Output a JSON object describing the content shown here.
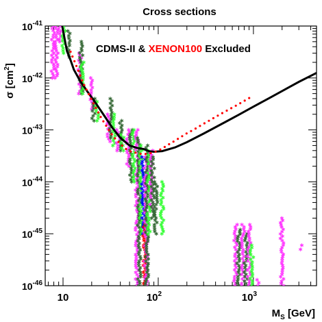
{
  "chart_data": {
    "type": "scatter",
    "title": "Cross sections",
    "xlabel": "M",
    "xlabel_sub": "S",
    "xlabel_unit": " [GeV]",
    "ylabel_main": "σ [cm",
    "ylabel_sup": "2",
    "ylabel_end": "]",
    "x_scale": "log",
    "y_scale": "log",
    "xlim": [
      6.5,
      4600
    ],
    "ylim": [
      1e-46,
      1e-41
    ],
    "x_ticks": [
      {
        "value": 10,
        "base": "10",
        "exp": ""
      },
      {
        "value": 100,
        "base": "10",
        "exp": "2"
      },
      {
        "value": 1000,
        "base": "10",
        "exp": "3"
      }
    ],
    "y_ticks": [
      {
        "value": 1e-41,
        "base": "10",
        "exp": "-41"
      },
      {
        "value": 1e-42,
        "base": "10",
        "exp": "-42"
      },
      {
        "value": 1e-43,
        "base": "10",
        "exp": "-43"
      },
      {
        "value": 1e-44,
        "base": "10",
        "exp": "-44"
      },
      {
        "value": 1e-45,
        "base": "10",
        "exp": "-45"
      },
      {
        "value": 1e-46,
        "base": "10",
        "exp": "-46"
      }
    ],
    "annotation": {
      "part1": "CDMS-II & ",
      "part2": "XENON100",
      "part3": " Excluded",
      "color1": "#000000",
      "color2": "#ff0000"
    },
    "curves": [
      {
        "style": "solid",
        "color": "#000000",
        "points": [
          [
            9.8,
            1e-41
          ],
          [
            11,
            3.3e-42
          ],
          [
            12,
            2.2e-42
          ],
          [
            13,
            1.45e-42
          ],
          [
            15,
            9e-43
          ],
          [
            18,
            5.5e-43
          ],
          [
            22,
            3.3e-43
          ],
          [
            27,
            1.9e-43
          ],
          [
            33,
            1.1e-43
          ],
          [
            40,
            7e-44
          ],
          [
            50,
            5e-44
          ],
          [
            60,
            4.5e-44
          ],
          [
            70,
            4.3e-44
          ],
          [
            80,
            3.9e-44
          ],
          [
            90,
            3.8e-44
          ],
          [
            110,
            3.9e-44
          ],
          [
            150,
            4.6e-44
          ],
          [
            200,
            5.8e-44
          ],
          [
            300,
            8.5e-44
          ],
          [
            500,
            1.4e-43
          ],
          [
            700,
            1.95e-43
          ],
          [
            1000,
            2.8e-43
          ],
          [
            1500,
            4.2e-43
          ],
          [
            2000,
            5.6e-43
          ],
          [
            3000,
            8.4e-43
          ],
          [
            4600,
            1.25e-42
          ]
        ]
      },
      {
        "style": "dotted",
        "color": "#ff0000",
        "points": [
          [
            12,
            3.2e-42
          ],
          [
            14,
            1.6e-42
          ],
          [
            16,
            8.6e-43
          ],
          [
            18,
            5.5e-43
          ],
          [
            20,
            3.8e-43
          ],
          [
            22,
            2.7e-43
          ],
          [
            25,
            1.75e-43
          ],
          [
            28,
            1.25e-43
          ],
          [
            32,
            8.5e-44
          ],
          [
            36,
            6.5e-44
          ],
          [
            40,
            5.4e-44
          ],
          [
            45,
            4.4e-44
          ],
          [
            50,
            3.9e-44
          ],
          [
            56,
            3.7e-44
          ],
          [
            63,
            3.5e-44
          ],
          [
            70,
            3.4e-44
          ],
          [
            80,
            3.5e-44
          ],
          [
            90,
            3.7e-44
          ],
          [
            100,
            4e-44
          ],
          [
            115,
            4.6e-44
          ],
          [
            130,
            5.3e-44
          ],
          [
            150,
            6.2e-44
          ],
          [
            175,
            7.4e-44
          ],
          [
            200,
            8.6e-44
          ],
          [
            240,
            1.03e-43
          ],
          [
            280,
            1.22e-43
          ],
          [
            330,
            1.45e-43
          ],
          [
            400,
            1.78e-43
          ],
          [
            480,
            2.15e-43
          ],
          [
            570,
            2.55e-43
          ],
          [
            680,
            3.05e-43
          ],
          [
            800,
            3.6e-43
          ],
          [
            900,
            4.1e-43
          ],
          [
            1000,
            4.5e-43
          ]
        ]
      }
    ],
    "scatter_bands": [
      {
        "color": "#ff33ff",
        "x": 7.8,
        "y_range": [
          1e-42,
          1e-41
        ],
        "n": 10
      },
      {
        "color": "#ff33ff",
        "x": 8.5,
        "y_range": [
          1e-42,
          1e-41
        ],
        "n": 10
      },
      {
        "color": "#ff33ff",
        "x": 9.3,
        "y_range": [
          5e-42,
          1e-41
        ],
        "n": 4
      },
      {
        "color": "#33ff33",
        "x": 10.2,
        "y_range": [
          3e-42,
          1e-41
        ],
        "n": 6
      },
      {
        "color": "#336633",
        "x": 11.5,
        "y_range": [
          2.5e-42,
          8e-42
        ],
        "n": 6
      },
      {
        "color": "#ff33ff",
        "x": 15,
        "y_range": [
          5e-43,
          3e-42
        ],
        "n": 10
      },
      {
        "color": "#336633",
        "x": 15.5,
        "y_range": [
          5e-43,
          5e-42
        ],
        "n": 14
      },
      {
        "color": "#33ff33",
        "x": 16,
        "y_range": [
          5e-43,
          2e-42
        ],
        "n": 6
      },
      {
        "color": "#ff33ff",
        "x": 20,
        "y_range": [
          2.5e-43,
          1e-42
        ],
        "n": 10
      },
      {
        "color": "#336633",
        "x": 21,
        "y_range": [
          1.5e-43,
          4e-43
        ],
        "n": 8
      },
      {
        "color": "#33ff33",
        "x": 23,
        "y_range": [
          1.5e-43,
          3.5e-43
        ],
        "n": 6
      },
      {
        "color": "#ff33ff",
        "x": 30,
        "y_range": [
          6e-44,
          2e-43
        ],
        "n": 8
      },
      {
        "color": "#336633",
        "x": 32,
        "y_range": [
          7e-44,
          4e-43
        ],
        "n": 10
      },
      {
        "color": "#33ff33",
        "x": 34,
        "y_range": [
          5e-44,
          2e-43
        ],
        "n": 6
      },
      {
        "color": "#ff33ff",
        "x": 38,
        "y_range": [
          4e-44,
          1e-43
        ],
        "n": 6
      },
      {
        "color": "#336633",
        "x": 40,
        "y_range": [
          4e-44,
          1.5e-43
        ],
        "n": 8
      },
      {
        "color": "#33ff33",
        "x": 42,
        "y_range": [
          4e-44,
          8e-44
        ],
        "n": 5
      },
      {
        "color": "#ff33ff",
        "x": 48,
        "y_range": [
          2e-44,
          1e-43
        ],
        "n": 8
      },
      {
        "color": "#336633",
        "x": 52,
        "y_range": [
          1e-44,
          1e-43
        ],
        "n": 12
      },
      {
        "color": "#33ff33",
        "x": 55,
        "y_range": [
          1e-44,
          1e-43
        ],
        "n": 10
      },
      {
        "color": "#ff33ff",
        "x": 60,
        "y_range": [
          1e-46,
          1e-43
        ],
        "n": 18
      },
      {
        "color": "#336633",
        "x": 63,
        "y_range": [
          1e-46,
          7e-44
        ],
        "n": 18
      },
      {
        "color": "#33ff33",
        "x": 66,
        "y_range": [
          1e-45,
          5e-44
        ],
        "n": 12
      },
      {
        "color": "#0000ff",
        "x": 70,
        "y_range": [
          1e-45,
          3e-44
        ],
        "n": 8
      },
      {
        "color": "#ff0000",
        "x": 72,
        "y_range": [
          1e-46,
          1.5e-45
        ],
        "n": 10
      },
      {
        "color": "#ff33ff",
        "x": 74,
        "y_range": [
          1e-46,
          3e-44
        ],
        "n": 14
      },
      {
        "color": "#336633",
        "x": 76,
        "y_range": [
          1e-46,
          5e-44
        ],
        "n": 18
      },
      {
        "color": "#33ff33",
        "x": 80,
        "y_range": [
          1e-45,
          4e-44
        ],
        "n": 12
      },
      {
        "color": "#ff33ff",
        "x": 85,
        "y_range": [
          3e-45,
          4e-44
        ],
        "n": 10
      },
      {
        "color": "#336633",
        "x": 88,
        "y_range": [
          2e-45,
          3e-44
        ],
        "n": 12
      },
      {
        "color": "#336633",
        "x": 95,
        "y_range": [
          1e-45,
          1e-44
        ],
        "n": 10
      },
      {
        "color": "#33ff33",
        "x": 110,
        "y_range": [
          1e-45,
          1e-44
        ],
        "n": 8
      },
      {
        "color": "#ff33ff",
        "x": 650,
        "y_range": [
          1e-46,
          1.5e-45
        ],
        "n": 8
      },
      {
        "color": "#336633",
        "x": 700,
        "y_range": [
          1e-46,
          1.2e-45
        ],
        "n": 12
      },
      {
        "color": "#ff33ff",
        "x": 780,
        "y_range": [
          1e-46,
          1.5e-45
        ],
        "n": 8
      },
      {
        "color": "#336633",
        "x": 830,
        "y_range": [
          1e-46,
          1e-45
        ],
        "n": 10
      },
      {
        "color": "#ff33ff",
        "x": 900,
        "y_range": [
          1e-46,
          1.5e-45
        ],
        "n": 8
      },
      {
        "color": "#33ff33",
        "x": 960,
        "y_range": [
          1e-46,
          6e-46
        ],
        "n": 5
      },
      {
        "color": "#ff33ff",
        "x": 1100,
        "y_range": [
          1e-46,
          1.3e-46
        ],
        "n": 2
      },
      {
        "color": "#ff33ff",
        "x": 2000,
        "y_range": [
          1e-46,
          2e-45
        ],
        "n": 8
      },
      {
        "color": "#ff33ff",
        "x": 3200,
        "y_range": [
          5e-46,
          6e-46
        ],
        "n": 1
      }
    ]
  }
}
